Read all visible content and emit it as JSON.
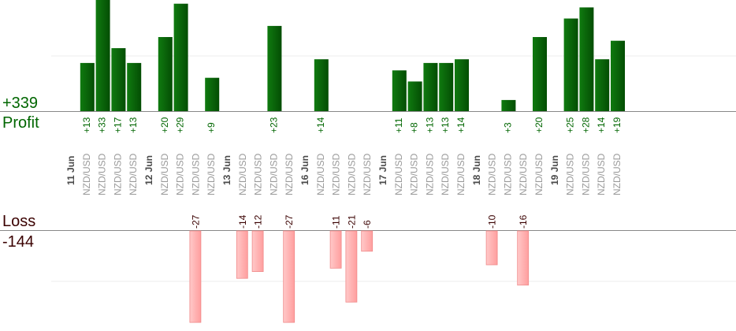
{
  "summary": {
    "profit_total": "+339",
    "profit_label": "Profit",
    "loss_label": "Loss",
    "loss_total": "-144"
  },
  "colors": {
    "profit_bar": "#0a640a",
    "profit_text": "#006600",
    "loss_bar": "#ffb3b3",
    "loss_text": "#3a0000",
    "axis": "#888888",
    "grid": "#eeeeee",
    "label": "#9a9a9a",
    "date": "#4a4a4a"
  },
  "chart_data": {
    "type": "bar",
    "profit_axis_range": [
      0,
      30
    ],
    "loss_axis_range": [
      -27,
      0
    ],
    "days": [
      {
        "date": "11 Jun",
        "trades": [
          {
            "pair": "NZD/USD",
            "value": 13,
            "label": "+13"
          },
          {
            "pair": "NZD/USD",
            "value": 33,
            "label": "+33"
          },
          {
            "pair": "NZD/USD",
            "value": 17,
            "label": "+17"
          },
          {
            "pair": "NZD/USD",
            "value": 13,
            "label": "+13"
          }
        ]
      },
      {
        "date": "12 Jun",
        "trades": [
          {
            "pair": "NZD/USD",
            "value": 20,
            "label": "+20"
          },
          {
            "pair": "NZD/USD",
            "value": 29,
            "label": "+29"
          },
          {
            "pair": "NZD/USD",
            "value": -27,
            "label": "-27"
          },
          {
            "pair": "NZD/USD",
            "value": 9,
            "label": "+9"
          }
        ]
      },
      {
        "date": "13 Jun",
        "trades": [
          {
            "pair": "NZD/USD",
            "value": -14,
            "label": "-14"
          },
          {
            "pair": "NZD/USD",
            "value": -12,
            "label": "-12"
          },
          {
            "pair": "NZD/USD",
            "value": 23,
            "label": "+23"
          },
          {
            "pair": "NZD/USD",
            "value": -27,
            "label": "-27"
          }
        ]
      },
      {
        "date": "16 Jun",
        "trades": [
          {
            "pair": "NZD/USD",
            "value": 14,
            "label": "+14"
          },
          {
            "pair": "NZD/USD",
            "value": -11,
            "label": "-11"
          },
          {
            "pair": "NZD/USD",
            "value": -21,
            "label": "-21"
          },
          {
            "pair": "NZD/USD",
            "value": -6,
            "label": "-6"
          }
        ]
      },
      {
        "date": "17 Jun",
        "trades": [
          {
            "pair": "NZD/USD",
            "value": 11,
            "label": "+11"
          },
          {
            "pair": "NZD/USD",
            "value": 8,
            "label": "+8"
          },
          {
            "pair": "NZD/USD",
            "value": 13,
            "label": "+13"
          },
          {
            "pair": "NZD/USD",
            "value": 13,
            "label": "+13"
          },
          {
            "pair": "NZD/USD",
            "value": 14,
            "label": "+14"
          }
        ]
      },
      {
        "date": "18 Jun",
        "trades": [
          {
            "pair": "NZD/USD",
            "value": -10,
            "label": "-10"
          },
          {
            "pair": "NZD/USD",
            "value": 3,
            "label": "+3"
          },
          {
            "pair": "NZD/USD",
            "value": -16,
            "label": "-16"
          },
          {
            "pair": "NZD/USD",
            "value": 20,
            "label": "+20"
          }
        ]
      },
      {
        "date": "19 Jun",
        "trades": [
          {
            "pair": "NZD/USD",
            "value": 25,
            "label": "+25"
          },
          {
            "pair": "NZD/USD",
            "value": 28,
            "label": "+28"
          },
          {
            "pair": "NZD/USD",
            "value": 14,
            "label": "+14"
          },
          {
            "pair": "NZD/USD",
            "value": 19,
            "label": "+19"
          }
        ]
      }
    ]
  }
}
